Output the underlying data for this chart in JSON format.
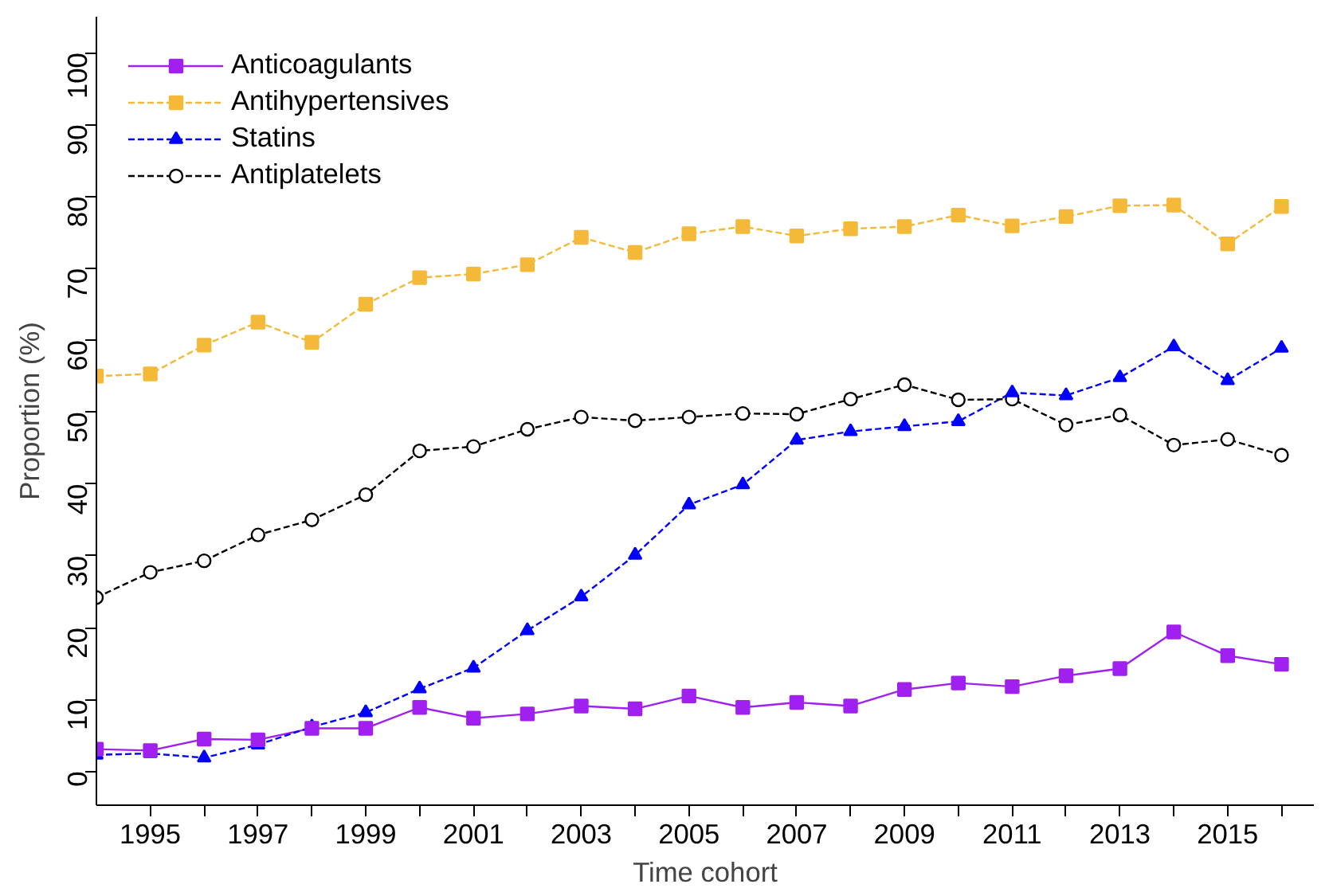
{
  "chart_data": {
    "type": "line",
    "xlabel": "Time cohort",
    "ylabel": "Proportion (%)",
    "x": [
      1994,
      1995,
      1996,
      1997,
      1998,
      1999,
      2000,
      2001,
      2002,
      2003,
      2004,
      2005,
      2006,
      2007,
      2008,
      2009,
      2010,
      2011,
      2012,
      2013,
      2014,
      2015,
      2016
    ],
    "series": [
      {
        "name": "Anticoagulants",
        "color": "#a020f0",
        "marker": "square",
        "line_style": "solid",
        "values": [
          3.1,
          2.9,
          4.5,
          4.4,
          6,
          6,
          8.9,
          7.4,
          8,
          9.1,
          8.7,
          10.5,
          8.9,
          9.6,
          9.1,
          11.4,
          12.3,
          11.8,
          13.3,
          14.3,
          19.4,
          16.1,
          14.9
        ]
      },
      {
        "name": "Antihypertensives",
        "color": "#f5b93a",
        "marker": "square",
        "line_style": "dashed",
        "values": [
          55,
          55.3,
          59.3,
          62.5,
          59.7,
          65,
          68.7,
          69.2,
          70.5,
          74.3,
          72.2,
          74.8,
          75.8,
          74.5,
          75.5,
          75.8,
          77.4,
          75.9,
          77.2,
          78.7,
          78.8,
          73.4,
          78.6
        ]
      },
      {
        "name": "Statins",
        "color": "#0000ff",
        "marker": "triangle",
        "line_style": "dashed",
        "values": [
          2.3,
          2.5,
          1.9,
          3.7,
          6.2,
          8.2,
          11.5,
          14.4,
          19.6,
          24.3,
          30.1,
          37.1,
          39.9,
          46.1,
          47.3,
          48,
          48.7,
          52.7,
          52.3,
          54.8,
          59.1,
          54.4,
          58.9
        ]
      },
      {
        "name": "Antiplatelets",
        "color": "#000000",
        "marker": "circle",
        "line_style": "dashed",
        "values": [
          24.2,
          27.7,
          29.3,
          32.9,
          35,
          38.5,
          44.6,
          45.2,
          47.6,
          49.3,
          48.8,
          49.3,
          49.8,
          49.7,
          51.8,
          53.8,
          51.7,
          51.8,
          48.2,
          49.6,
          45.4,
          46.2,
          44
        ]
      }
    ],
    "xlim": [
      1994,
      2016.6
    ],
    "ylim": [
      -4.7,
      105
    ],
    "xticks": [
      1995,
      {
        "value": 1996,
        "label": null
      },
      1997,
      {
        "value": 1998,
        "label": null
      },
      1999,
      {
        "value": 2000,
        "label": null
      },
      2001,
      {
        "value": 2002,
        "label": null
      },
      2003,
      {
        "value": 2004,
        "label": null
      },
      2005,
      {
        "value": 2006,
        "label": null
      },
      2007,
      {
        "value": 2008,
        "label": null
      },
      2009,
      {
        "value": 2010,
        "label": null
      },
      2011,
      {
        "value": 2012,
        "label": null
      },
      2013,
      {
        "value": 2014,
        "label": null
      },
      2015,
      {
        "value": 2016,
        "label": null
      }
    ],
    "yticks": [
      0,
      10,
      20,
      30,
      40,
      50,
      60,
      70,
      80,
      90,
      100
    ],
    "grid": false,
    "legend": "top left"
  }
}
